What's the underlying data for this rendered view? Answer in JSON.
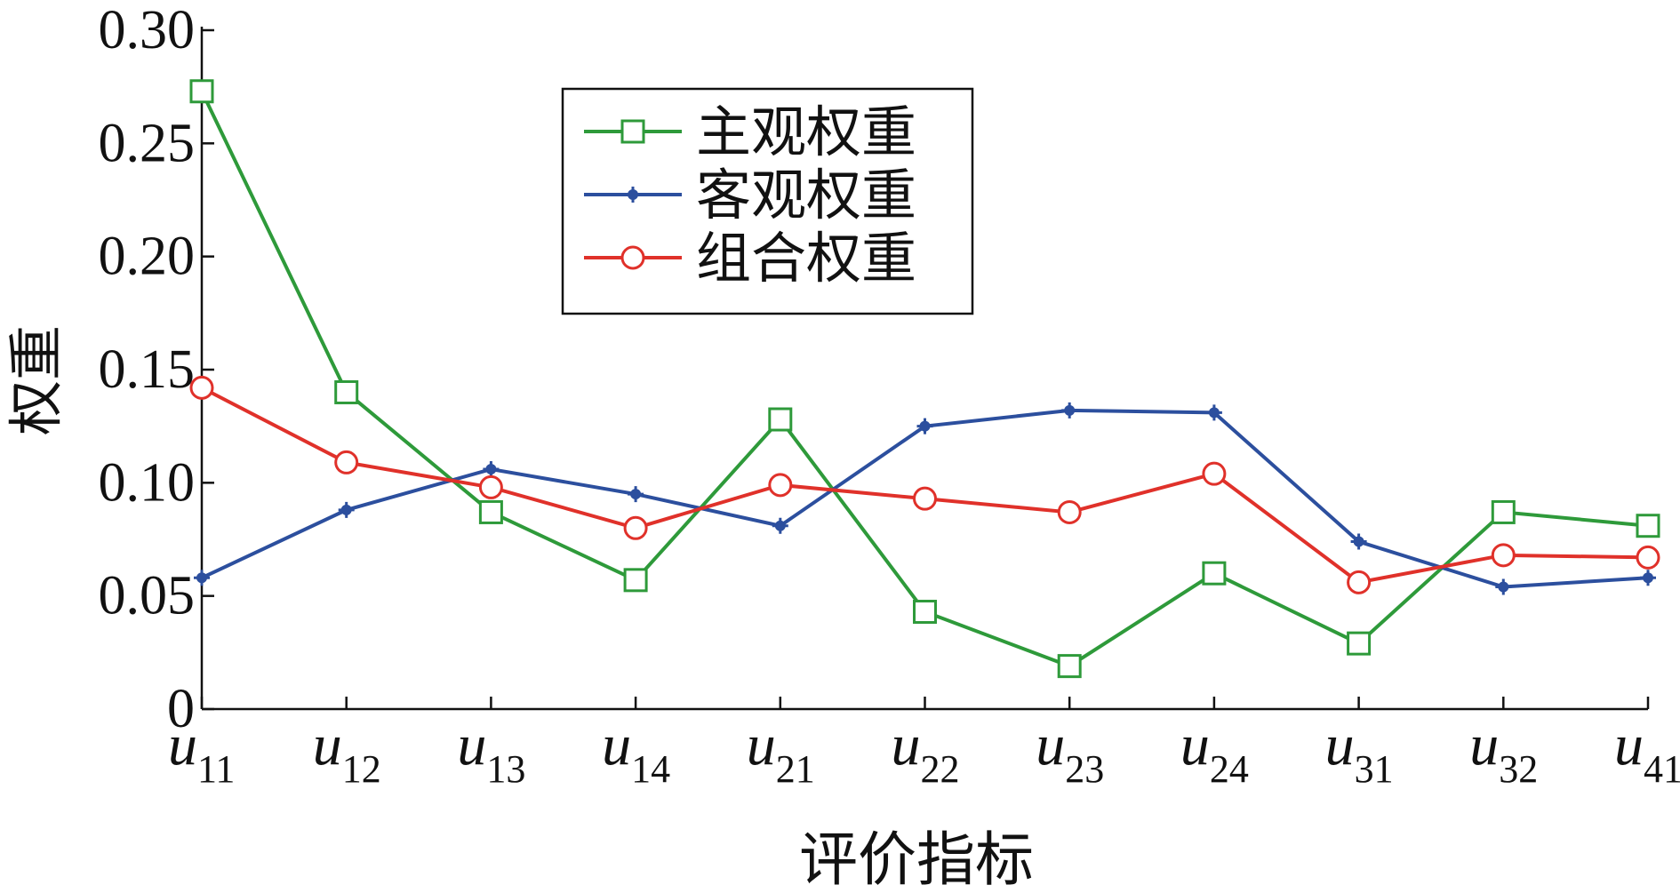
{
  "chart_data": {
    "type": "line",
    "x_label": "评价指标",
    "y_label": "权重",
    "categories": [
      {
        "symbol": "u",
        "subscript": "11"
      },
      {
        "symbol": "u",
        "subscript": "12"
      },
      {
        "symbol": "u",
        "subscript": "13"
      },
      {
        "symbol": "u",
        "subscript": "14"
      },
      {
        "symbol": "u",
        "subscript": "21"
      },
      {
        "symbol": "u",
        "subscript": "22"
      },
      {
        "symbol": "u",
        "subscript": "23"
      },
      {
        "symbol": "u",
        "subscript": "24"
      },
      {
        "symbol": "u",
        "subscript": "31"
      },
      {
        "symbol": "u",
        "subscript": "32"
      },
      {
        "symbol": "u",
        "subscript": "41"
      }
    ],
    "series": [
      {
        "name": "主观权重",
        "color": "#2e9a3a",
        "marker": "square",
        "values": [
          0.273,
          0.14,
          0.087,
          0.057,
          0.128,
          0.043,
          0.019,
          0.06,
          0.029,
          0.087,
          0.081
        ]
      },
      {
        "name": "客观权重",
        "color": "#2c4f9e",
        "marker": "star",
        "values": [
          0.058,
          0.088,
          0.106,
          0.095,
          0.081,
          0.125,
          0.132,
          0.131,
          0.074,
          0.054,
          0.058
        ]
      },
      {
        "name": "组合权重",
        "color": "#e0312a",
        "marker": "circle",
        "values": [
          0.142,
          0.109,
          0.098,
          0.08,
          0.099,
          0.093,
          0.087,
          0.104,
          0.056,
          0.068,
          0.067
        ]
      }
    ],
    "ylim": [
      0,
      0.3
    ],
    "yticks": [
      0,
      0.05,
      {
        "value": 0.1,
        "label": "0.10"
      },
      0.15,
      {
        "value": 0.2,
        "label": "0.20"
      },
      0.25,
      {
        "value": 0.3,
        "label": "0.30"
      }
    ],
    "legend": "upper-center"
  }
}
